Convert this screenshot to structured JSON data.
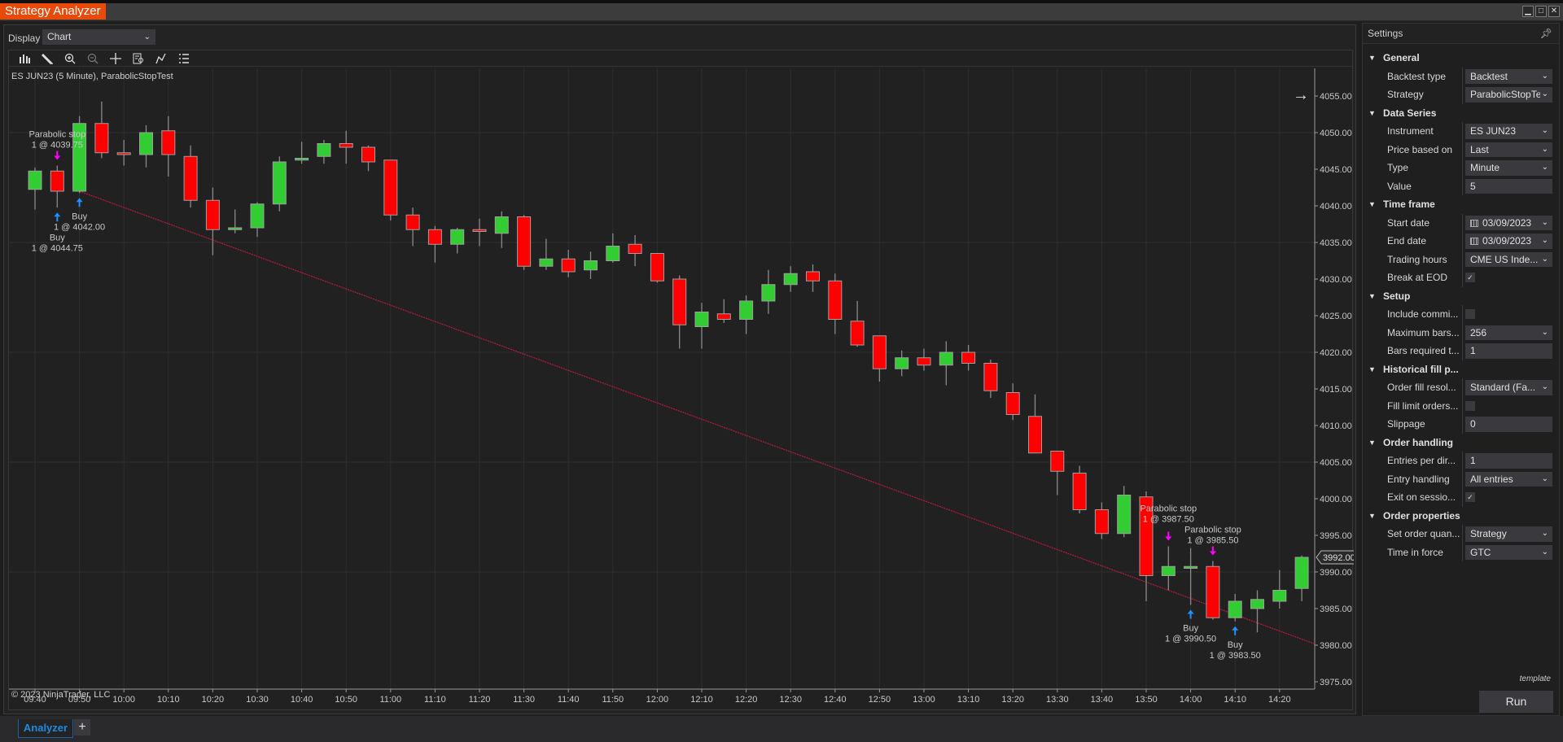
{
  "window": {
    "title": "Strategy Analyzer",
    "buttons": [
      "minimize",
      "maximize",
      "close"
    ]
  },
  "display": {
    "label": "Display",
    "value": "Chart"
  },
  "toolbar": {
    "icons": [
      "bar-type-icon",
      "pencil-icon",
      "zoom-in-icon",
      "zoom-out-icon",
      "crosshair-icon",
      "data-box-icon",
      "drawing-tool-icon",
      "properties-icon"
    ]
  },
  "chart": {
    "title": "ES JUN23 (5 Minute), ParabolicStopTest",
    "copyright": "© 2023 NinjaTrader, LLC",
    "current_price_label": "3992.00",
    "colors": {
      "up": "#32cd32",
      "down": "#ff0000",
      "entry_arrow": "#1e90ff",
      "exit_arrow": "#ff00ff",
      "trend_line": "#c0173c"
    }
  },
  "chart_data": {
    "type": "candlestick",
    "instrument": "ES JUN23",
    "yticks": [
      "3975.00",
      "3980.00",
      "3985.00",
      "3990.00",
      "3995.00",
      "4000.00",
      "4005.00",
      "4010.00",
      "4015.00",
      "4020.00",
      "4025.00",
      "4030.00",
      "4035.00",
      "4040.00",
      "4045.00",
      "4050.00",
      "4055.00"
    ],
    "xticks": [
      "09:40",
      "09:50",
      "10:00",
      "10:10",
      "10:20",
      "10:30",
      "10:40",
      "10:50",
      "11:00",
      "11:10",
      "11:20",
      "11:30",
      "11:40",
      "11:50",
      "12:00",
      "12:10",
      "12:20",
      "12:30",
      "12:40",
      "12:50",
      "13:00",
      "13:10",
      "13:20",
      "13:30",
      "13:40",
      "13:50",
      "14:00",
      "14:10",
      "14:20"
    ],
    "ylim": [
      3975,
      4055
    ],
    "bars": [
      [
        "09:40",
        4042.25,
        4045.25,
        4039.5,
        4044.75
      ],
      [
        "09:45",
        4044.75,
        4045.5,
        4039.75,
        4042
      ],
      [
        "09:50",
        4042,
        4052.25,
        4041.75,
        4051.25
      ],
      [
        "09:55",
        4051.25,
        4054.25,
        4046.5,
        4047.25
      ],
      [
        "10:00",
        4047.25,
        4049,
        4045.5,
        4047
      ],
      [
        "10:05",
        4047,
        4051,
        4045.25,
        4050
      ],
      [
        "10:10",
        4050.25,
        4052.25,
        4044,
        4047
      ],
      [
        "10:15",
        4046.75,
        4048.25,
        4039.75,
        4040.75
      ],
      [
        "10:20",
        4040.75,
        4042.5,
        4033.25,
        4036.75
      ],
      [
        "10:25",
        4036.75,
        4039.5,
        4036.25,
        4037
      ],
      [
        "10:30",
        4037,
        4040.5,
        4035.75,
        4040.25
      ],
      [
        "10:35",
        4040.25,
        4046.75,
        4039.25,
        4046
      ],
      [
        "10:40",
        4046.25,
        4048.75,
        4045.75,
        4046.5
      ],
      [
        "10:45",
        4046.75,
        4049,
        4045.75,
        4048.5
      ],
      [
        "10:50",
        4048.5,
        4050.25,
        4045.75,
        4048
      ],
      [
        "10:55",
        4048,
        4048.25,
        4044.75,
        4046
      ],
      [
        "11:00",
        4046.25,
        4046.25,
        4038,
        4038.75
      ],
      [
        "11:05",
        4038.75,
        4039.75,
        4034.5,
        4036.75
      ],
      [
        "11:10",
        4036.75,
        4037.25,
        4032.25,
        4034.75
      ],
      [
        "11:15",
        4034.75,
        4037,
        4033.5,
        4036.75
      ],
      [
        "11:20",
        4036.75,
        4038.25,
        4034.5,
        4036.5
      ],
      [
        "11:25",
        4036.25,
        4039.25,
        4034.25,
        4038.5
      ],
      [
        "11:30",
        4038.5,
        4038.75,
        4031.25,
        4031.75
      ],
      [
        "11:35",
        4031.75,
        4035.5,
        4031.25,
        4032.75
      ],
      [
        "11:40",
        4032.75,
        4034,
        4030.25,
        4031
      ],
      [
        "11:45",
        4031.25,
        4033.75,
        4030,
        4032.5
      ],
      [
        "11:50",
        4032.5,
        4036.25,
        4032.25,
        4034.5
      ],
      [
        "11:55",
        4034.75,
        4036,
        4031.75,
        4033.5
      ],
      [
        "12:00",
        4033.5,
        4033.5,
        4029.5,
        4029.75
      ],
      [
        "12:05",
        4030,
        4030.5,
        4020.5,
        4023.75
      ],
      [
        "12:10",
        4023.5,
        4026.75,
        4020.5,
        4025.5
      ],
      [
        "12:15",
        4025.25,
        4027.25,
        4024,
        4024.5
      ],
      [
        "12:20",
        4024.5,
        4027.75,
        4022.5,
        4027
      ],
      [
        "12:25",
        4027,
        4031.25,
        4025.25,
        4029.25
      ],
      [
        "12:30",
        4029.25,
        4031.75,
        4028.25,
        4030.75
      ],
      [
        "12:35",
        4031,
        4032,
        4028.25,
        4029.75
      ],
      [
        "12:40",
        4029.75,
        4030.75,
        4022.5,
        4024.5
      ],
      [
        "12:45",
        4024.25,
        4027,
        4020.75,
        4021
      ],
      [
        "12:50",
        4022.25,
        4022.25,
        4016,
        4017.75
      ],
      [
        "12:55",
        4017.75,
        4020.25,
        4016.75,
        4019.25
      ],
      [
        "13:00",
        4019.25,
        4020.5,
        4017.5,
        4018.25
      ],
      [
        "13:05",
        4018.25,
        4021.5,
        4015.5,
        4020
      ],
      [
        "13:10",
        4020,
        4021,
        4017.5,
        4018.5
      ],
      [
        "13:15",
        4018.5,
        4019,
        4013.75,
        4014.75
      ],
      [
        "13:20",
        4014.5,
        4015.75,
        4010.75,
        4011.5
      ],
      [
        "13:25",
        4011.25,
        4014.25,
        4006.25,
        4006.25
      ],
      [
        "13:30",
        4006.5,
        4006.5,
        4000.5,
        4003.75
      ],
      [
        "13:35",
        4003.5,
        4004.5,
        3998,
        3998.5
      ],
      [
        "13:40",
        3998.5,
        3999.5,
        3994.5,
        3995.25
      ],
      [
        "13:45",
        3995.25,
        4001.75,
        3994.75,
        4000.5
      ],
      [
        "13:50",
        4000.25,
        4001,
        3986,
        3989.5
      ],
      [
        "13:55",
        3989.5,
        3993.5,
        3987.5,
        3990.75
      ],
      [
        "14:00",
        3990.5,
        3993.25,
        3985.5,
        3990.75
      ],
      [
        "14:05",
        3990.75,
        3991.5,
        3983.5,
        3983.75
      ],
      [
        "14:10",
        3983.75,
        3987,
        3983.25,
        3986
      ],
      [
        "14:15",
        3985,
        3987.5,
        3981.75,
        3986.25
      ],
      [
        "14:20",
        3986,
        3990.25,
        3985,
        3987.5
      ],
      [
        "14:25",
        3987.75,
        3992.25,
        3986,
        3992
      ]
    ],
    "executions": [
      {
        "time": "09:45",
        "kind": "exit",
        "price": 4039.75,
        "line1": "Parabolic stop",
        "line2": "1 @ 4039.75"
      },
      {
        "time": "09:45",
        "kind": "entry",
        "price": 4044.75,
        "line1": "Buy",
        "line2": "1 @ 4044.75"
      },
      {
        "time": "09:50",
        "kind": "entry",
        "price": 4042.0,
        "line1": "Buy",
        "line2": "1 @ 4042.00"
      },
      {
        "time": "13:55",
        "kind": "exit",
        "price": 3987.5,
        "line1": "Parabolic stop",
        "line2": "1 @ 3987.50"
      },
      {
        "time": "14:00",
        "kind": "entry",
        "price": 3990.5,
        "line1": "Buy",
        "line2": "1 @ 3990.50"
      },
      {
        "time": "14:05",
        "kind": "exit",
        "price": 3985.5,
        "line1": "Parabolic stop",
        "line2": "1 @ 3985.50"
      },
      {
        "time": "14:10",
        "kind": "entry",
        "price": 3983.5,
        "line1": "Buy",
        "line2": "1 @ 3983.50"
      }
    ],
    "trend_line": {
      "from": {
        "time": "09:50",
        "price": 4042.0
      },
      "to": {
        "time": "13:55",
        "price": 3987.5
      },
      "extends_right": true
    },
    "grid": true
  },
  "settings": {
    "title": "Settings",
    "template_label": "template",
    "run_label": "Run",
    "rows": [
      {
        "type": "section",
        "label": "General"
      },
      {
        "type": "select",
        "label": "Backtest type",
        "value": "Backtest"
      },
      {
        "type": "select",
        "label": "Strategy",
        "value": "ParabolicStopTe"
      },
      {
        "type": "section",
        "label": "Data Series"
      },
      {
        "type": "select",
        "label": "Instrument",
        "value": "ES JUN23"
      },
      {
        "type": "select",
        "label": "Price based on",
        "value": "Last"
      },
      {
        "type": "select",
        "label": "Type",
        "value": "Minute"
      },
      {
        "type": "input",
        "label": "Value",
        "value": "5"
      },
      {
        "type": "section",
        "label": "Time frame"
      },
      {
        "type": "date",
        "label": "Start date",
        "value": "03/09/2023"
      },
      {
        "type": "date",
        "label": "End date",
        "value": "03/09/2023"
      },
      {
        "type": "select",
        "label": "Trading hours",
        "value": "CME US Inde..."
      },
      {
        "type": "check",
        "label": "Break at EOD",
        "checked": true
      },
      {
        "type": "section",
        "label": "Setup"
      },
      {
        "type": "check",
        "label": "Include commi...",
        "checked": false
      },
      {
        "type": "select",
        "label": "Maximum bars...",
        "value": "256"
      },
      {
        "type": "input",
        "label": "Bars required t...",
        "value": "1"
      },
      {
        "type": "section",
        "label": "Historical fill p..."
      },
      {
        "type": "select",
        "label": "Order fill resol...",
        "value": "Standard (Fa..."
      },
      {
        "type": "check",
        "label": "Fill limit orders...",
        "checked": false
      },
      {
        "type": "input",
        "label": "Slippage",
        "value": "0"
      },
      {
        "type": "section",
        "label": "Order handling"
      },
      {
        "type": "input",
        "label": "Entries per dir...",
        "value": "1"
      },
      {
        "type": "select",
        "label": "Entry handling",
        "value": "All entries"
      },
      {
        "type": "check",
        "label": "Exit on sessio...",
        "checked": true
      },
      {
        "type": "section",
        "label": "Order properties"
      },
      {
        "type": "select",
        "label": "Set order quan...",
        "value": "Strategy"
      },
      {
        "type": "select",
        "label": "Time in force",
        "value": "GTC"
      }
    ]
  },
  "bottom_tabs": {
    "active": "Analyzer",
    "add_label": "+"
  }
}
